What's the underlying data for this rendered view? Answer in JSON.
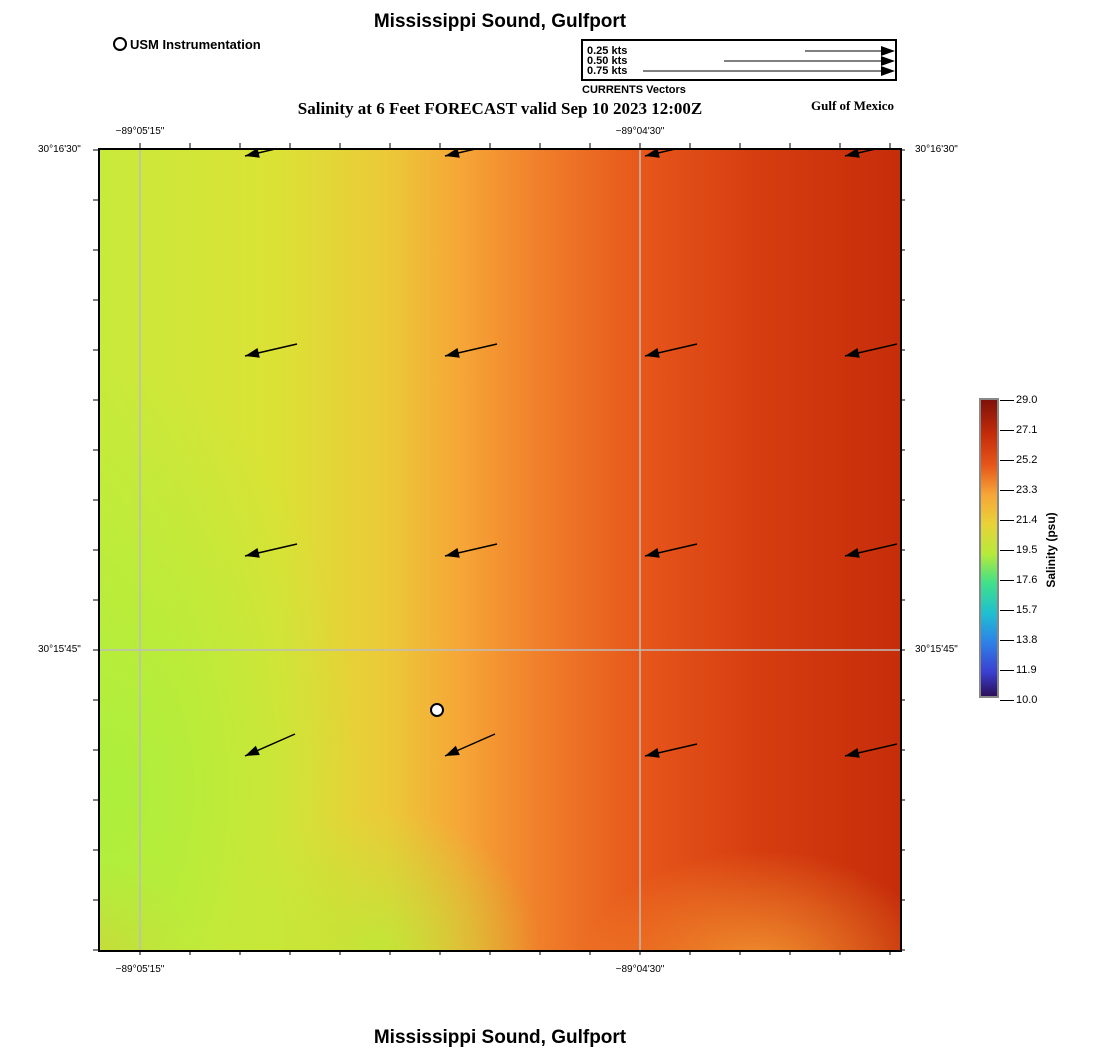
{
  "header": {
    "title": "Mississippi Sound, Gulfport",
    "subtitle": "Salinity at 6 Feet FORECAST valid Sep 10 2023 12:00Z",
    "region": "Gulf of Mexico",
    "bottom_title": "Mississippi Sound, Gulfport"
  },
  "station_legend": {
    "label": "USM Instrumentation",
    "symbol": "white-circle-icon"
  },
  "vector_legend": {
    "caption": "CURRENTS Vectors",
    "entries": [
      {
        "label": "0.25 kts",
        "speed_kts": 0.25
      },
      {
        "label": "0.50 kts",
        "speed_kts": 0.5
      },
      {
        "label": "0.75 kts",
        "speed_kts": 0.75
      }
    ]
  },
  "map": {
    "lon_ticks": [
      "−89°05'15\"",
      "−89°04'30\""
    ],
    "lat_ticks": [
      "30°16'30\"",
      "30°15'45\""
    ],
    "field_colors": {
      "low": "#b6ea3a",
      "mid": "#f6a637",
      "high": "#c62d0a"
    },
    "current_vectors": [
      {
        "dir": "west-southwest",
        "row": 1,
        "col": 1
      },
      {
        "dir": "west-southwest",
        "row": 1,
        "col": 2
      },
      {
        "dir": "west-southwest",
        "row": 1,
        "col": 3
      },
      {
        "dir": "west-southwest",
        "row": 1,
        "col": 4
      },
      {
        "dir": "west-southwest",
        "row": 2,
        "col": 1
      },
      {
        "dir": "west-southwest",
        "row": 2,
        "col": 2
      },
      {
        "dir": "west-southwest",
        "row": 2,
        "col": 3
      },
      {
        "dir": "west-southwest",
        "row": 2,
        "col": 4
      },
      {
        "dir": "west-southwest",
        "row": 3,
        "col": 1
      },
      {
        "dir": "west-southwest",
        "row": 3,
        "col": 2
      },
      {
        "dir": "west-southwest",
        "row": 3,
        "col": 3
      },
      {
        "dir": "west-southwest",
        "row": 3,
        "col": 4
      },
      {
        "dir": "southwest",
        "row": 4,
        "col": 1
      },
      {
        "dir": "southwest",
        "row": 4,
        "col": 2
      },
      {
        "dir": "west-southwest",
        "row": 4,
        "col": 3
      },
      {
        "dir": "west-southwest",
        "row": 4,
        "col": 4
      }
    ],
    "station": {
      "name": "USM Instrumentation"
    }
  },
  "colorbar": {
    "title": "Salinity (psu)",
    "ticks": [
      "29.0",
      "27.1",
      "25.2",
      "23.3",
      "21.4",
      "19.5",
      "17.6",
      "15.7",
      "13.8",
      "11.9",
      "10.0"
    ],
    "min": 10.0,
    "max": 29.0
  }
}
